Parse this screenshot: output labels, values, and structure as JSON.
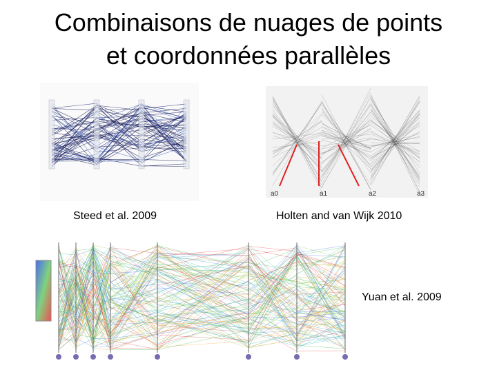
{
  "slide": {
    "title_lines": [
      "Combinaisons de nuages de points",
      "et coordonnées parallèles"
    ],
    "figures": [
      {
        "caption": "Steed et al. 2009"
      },
      {
        "caption": "Holten and van Wijk 2010",
        "axis_labels": [
          "a0",
          "a1",
          "a2",
          "a3"
        ]
      },
      {
        "caption": "Yuan et al. 2009"
      }
    ]
  }
}
